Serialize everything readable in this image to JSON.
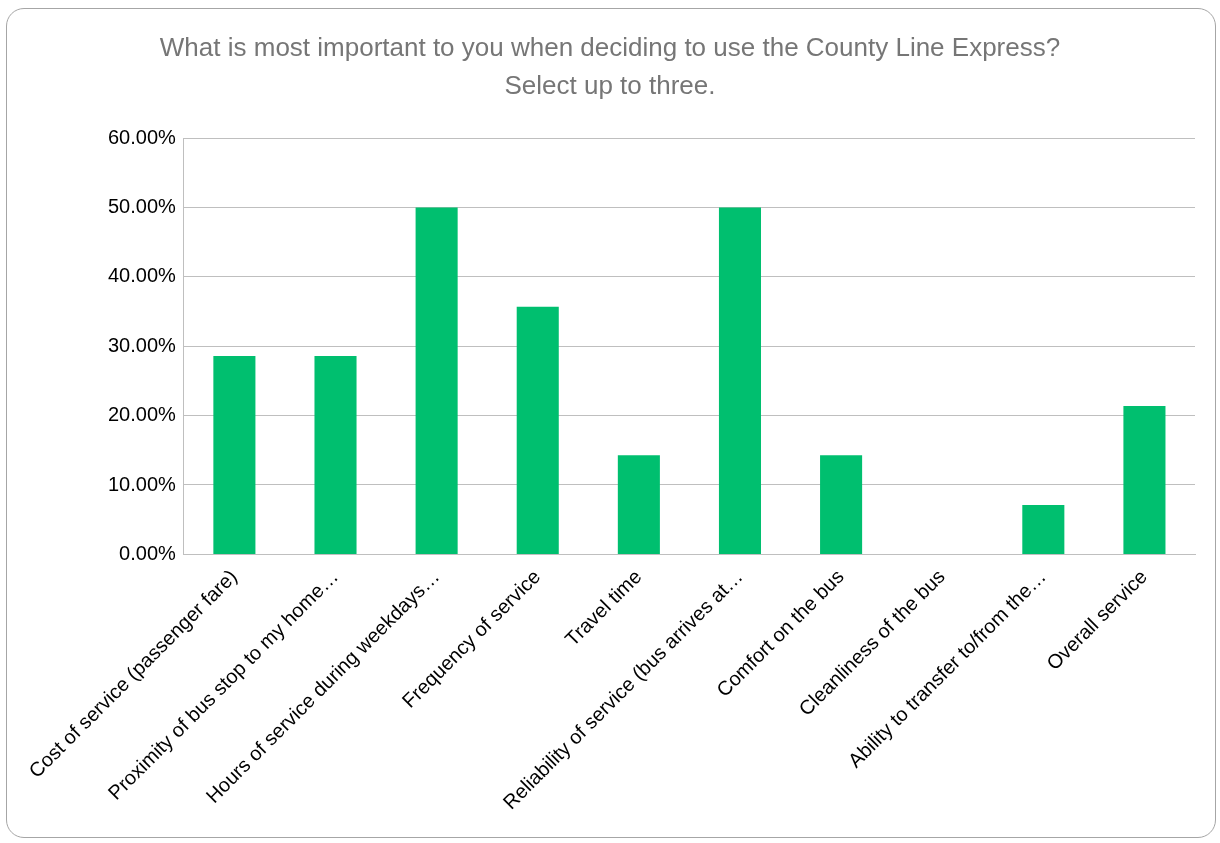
{
  "chart_data": {
    "type": "bar",
    "title": "What is most important to you when deciding to use the County Line Express? Select up to three.",
    "categories": [
      "Cost of service (passenger fare)",
      "Proximity of bus stop to my home…",
      "Hours of service during weekdays…",
      "Frequency of service",
      "Travel time",
      "Reliability of service (bus arrives at…",
      "Comfort on the bus",
      "Cleanliness of the bus",
      "Ability to transfer to/from the…",
      "Overall service"
    ],
    "values": [
      28.6,
      28.6,
      50,
      35.7,
      14.3,
      50,
      14.3,
      0,
      7.1,
      21.4
    ],
    "color": "#00bf6f",
    "ylim": [
      0,
      60
    ],
    "yticks": [
      {
        "value": 0,
        "label": "0.00%"
      },
      {
        "value": 10,
        "label": "10.00%"
      },
      {
        "value": 20,
        "label": "20.00%"
      },
      {
        "value": 30,
        "label": "30.00%"
      },
      {
        "value": 40,
        "label": "40.00%"
      },
      {
        "value": 50,
        "label": "50.00%"
      },
      {
        "value": 60,
        "label": "60.00%"
      }
    ],
    "grid": "y",
    "legend": false
  }
}
